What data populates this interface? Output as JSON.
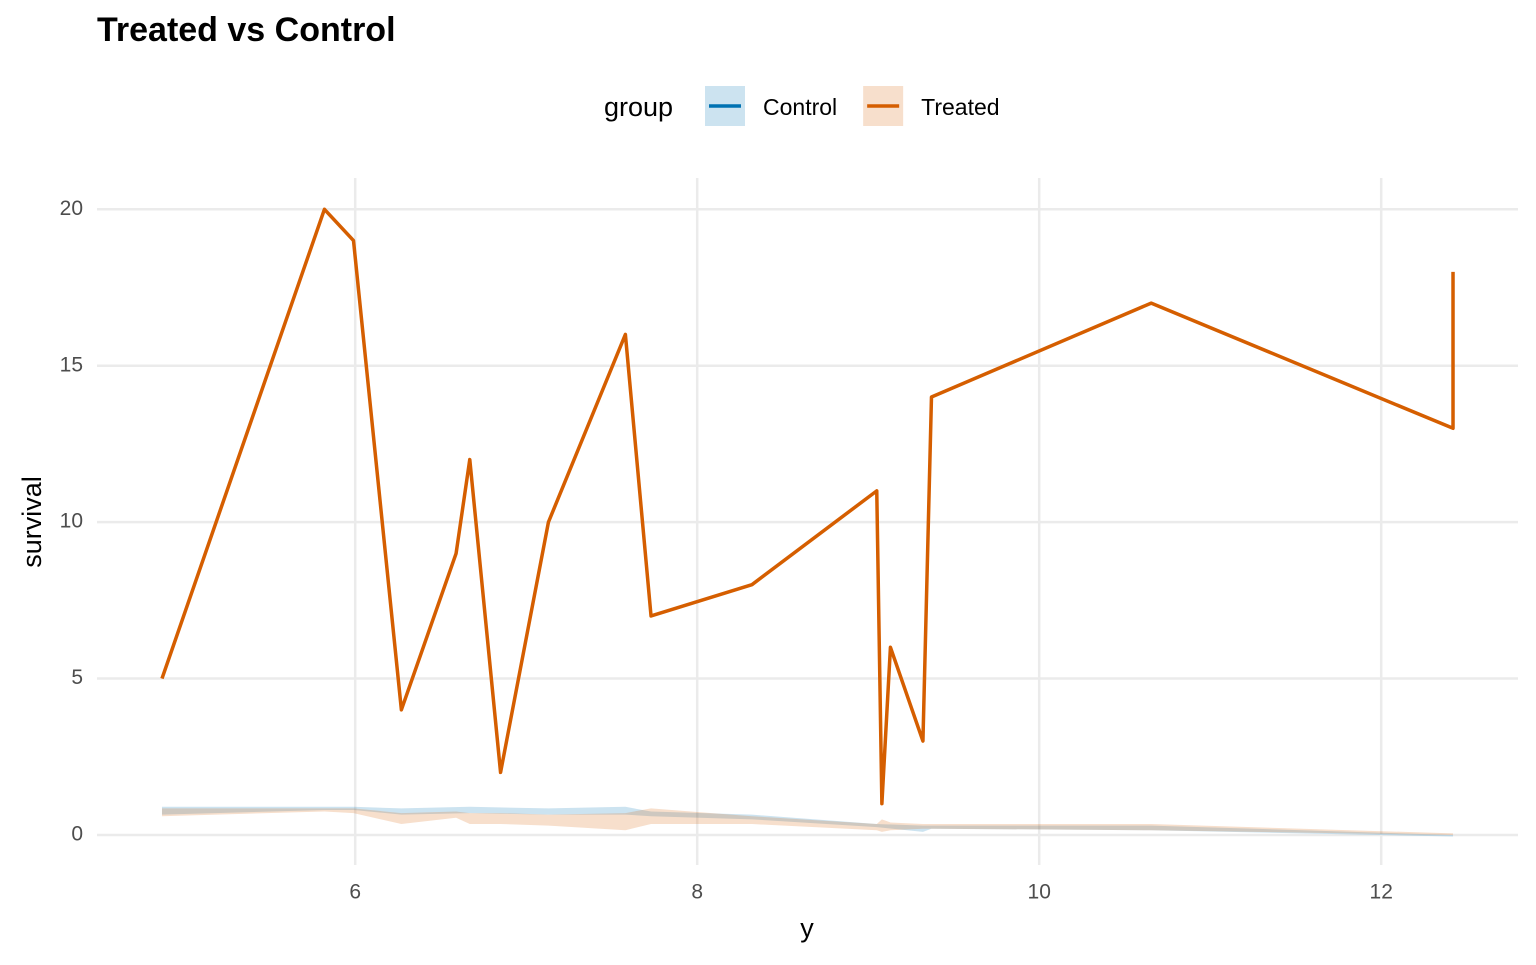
{
  "chart_data": {
    "type": "line",
    "title": "Treated vs Control",
    "x_label": "y",
    "y_label": "survival",
    "legend_title": "group",
    "legend_position": "top",
    "xlim": [
      4.49,
      12.8
    ],
    "xticks": [
      6,
      8,
      10,
      12
    ],
    "ylim": [
      -0.96,
      21
    ],
    "yticks": [
      0,
      5,
      10,
      15,
      20
    ],
    "grid": true,
    "ribbon_opacity": 0.2,
    "series": [
      {
        "name": "Control",
        "color": "#0072B2",
        "x": [
          4.87,
          5.82,
          5.99,
          6.27,
          6.67,
          7.13,
          7.58,
          7.73,
          8.32,
          9.05,
          9.32,
          9.37,
          10.655,
          12.42
        ],
        "lower": [
          0.65,
          0.8,
          0.8,
          0.65,
          0.7,
          0.65,
          0.65,
          0.6,
          0.5,
          0.25,
          0.1,
          0.2,
          0.15,
          -0.05
        ],
        "upper": [
          0.9,
          0.9,
          0.9,
          0.85,
          0.9,
          0.85,
          0.9,
          0.75,
          0.65,
          0.35,
          0.3,
          0.3,
          0.3,
          0
        ]
      },
      {
        "name": "Treated",
        "color": "#D55E00",
        "x": [
          4.87,
          5.82,
          5.99,
          6.27,
          6.59,
          6.67,
          6.85,
          7.13,
          7.58,
          7.73,
          8.32,
          9.05,
          9.08,
          9.13,
          9.32,
          9.37,
          10.655,
          12.42,
          12.42
        ],
        "values": [
          5,
          20,
          19,
          4,
          9,
          12,
          2,
          10,
          16,
          7,
          8,
          11,
          1,
          6,
          3,
          14,
          17,
          13,
          18
        ],
        "lower": [
          0.6,
          0.75,
          0.7,
          0.35,
          0.55,
          0.35,
          0.35,
          0.3,
          0.15,
          0.35,
          0.35,
          0.15,
          0.1,
          0.15,
          0.2,
          0.2,
          0.15,
          0,
          0
        ],
        "upper": [
          0.85,
          0.85,
          0.85,
          0.7,
          0.75,
          0.7,
          0.7,
          0.65,
          0.7,
          0.85,
          0.6,
          0.35,
          0.5,
          0.4,
          0.35,
          0.35,
          0.35,
          0.05,
          0.05
        ]
      }
    ]
  }
}
